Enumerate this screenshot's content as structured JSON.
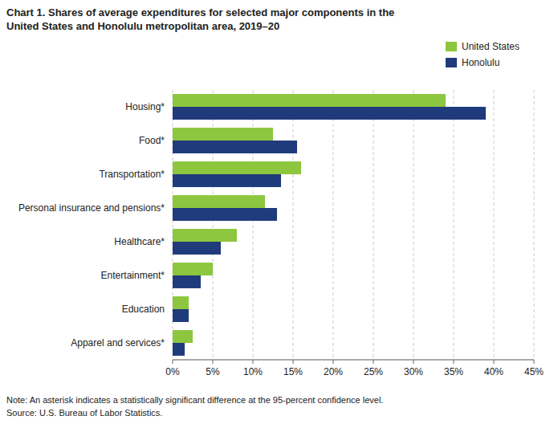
{
  "chart_data": {
    "type": "bar",
    "orientation": "horizontal",
    "title": "Chart 1. Shares of average expenditures for selected major components in the\nUnited States and Honolulu metropolitan area, 2019–20",
    "categories": [
      "Housing*",
      "Food*",
      "Transportation*",
      "Personal insurance and pensions*",
      "Healthcare*",
      "Entertainment*",
      "Education",
      "Apparel and services*"
    ],
    "series": [
      {
        "name": "United States",
        "color": "#8DC63F",
        "values": [
          34.0,
          12.5,
          16.0,
          11.5,
          8.0,
          5.0,
          2.0,
          2.5
        ]
      },
      {
        "name": "Honolulu",
        "color": "#1F3B7B",
        "values": [
          39.0,
          15.5,
          13.5,
          13.0,
          6.0,
          3.5,
          2.0,
          1.5
        ]
      }
    ],
    "xlim": [
      0,
      45
    ],
    "xticks": [
      {
        "value": 0,
        "label": "0%"
      },
      {
        "value": 5,
        "label": "5%"
      },
      {
        "value": 10,
        "label": "10%"
      },
      {
        "value": 15,
        "label": "15%"
      },
      {
        "value": 20,
        "label": "20%"
      },
      {
        "value": 25,
        "label": "25%"
      },
      {
        "value": 30,
        "label": "30%"
      },
      {
        "value": 35,
        "label": "35%"
      },
      {
        "value": 40,
        "label": "40%"
      },
      {
        "value": 45,
        "label": "45%"
      }
    ],
    "grid": true,
    "legend": "top-right",
    "annotations": [
      "Note: An asterisk indicates a statistically significant difference at the 95-percent confidence level.",
      "Source: U.S. Bureau of Labor Statistics."
    ]
  }
}
